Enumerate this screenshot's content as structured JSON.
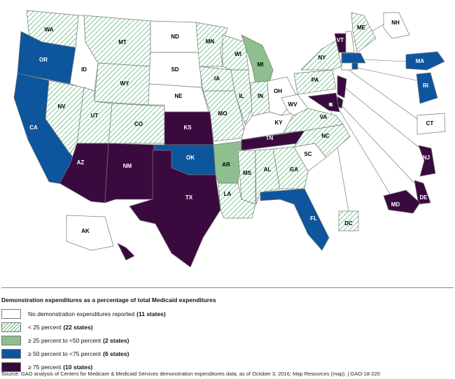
{
  "colors": {
    "none": "#ffffff",
    "lt25": "#5cb87a",
    "25to50": "#8fbf8f",
    "50to75": "#0d559c",
    "gte75": "#3a0a3e"
  },
  "states": {
    "WA": "lt25",
    "OR": "50to75",
    "CA": "50to75",
    "NV": "lt25",
    "ID": "none",
    "MT": "lt25",
    "WY": "lt25",
    "UT": "lt25",
    "CO": "lt25",
    "AZ": "gte75",
    "NM": "gte75",
    "ND": "none",
    "SD": "none",
    "NE": "none",
    "KS": "gte75",
    "OK": "50to75",
    "TX": "gte75",
    "MN": "lt25",
    "IA": "lt25",
    "MO": "lt25",
    "AR": "25to50",
    "LA": "lt25",
    "WI": "lt25",
    "IL": "lt25",
    "MI": "25to50",
    "IN": "lt25",
    "OH": "none",
    "KY": "none",
    "TN": "gte75",
    "MS": "lt25",
    "AL": "lt25",
    "GA": "lt25",
    "FL": "50to75",
    "SC": "none",
    "NC": "lt25",
    "VA": "lt25",
    "WV": "none",
    "PA": "lt25",
    "NY": "lt25",
    "VT": "gte75",
    "NH": "none",
    "ME": "lt25",
    "MA": "50to75",
    "CT": "none",
    "RI": "50to75",
    "NJ": "gte75",
    "DE": "gte75",
    "MD": "gte75",
    "DC": "lt25",
    "AK": "none",
    "HI": "gte75"
  },
  "legend": {
    "title": "Demonstration expenditures as a percentage of total Medicaid expenditures",
    "items": [
      {
        "key": "none",
        "label": "No demonstration expenditures reported",
        "count": "(11 states)"
      },
      {
        "key": "lt25",
        "label": "< 25 percent",
        "count": "(22 states)"
      },
      {
        "key": "25to50",
        "label": "≥ 25 percent to <50 percent",
        "count": "(2 states)"
      },
      {
        "key": "50to75",
        "label": "≥  50 percent to <75 percent",
        "count": "(6 states)"
      },
      {
        "key": "gte75",
        "label": "≥ 75 percent",
        "count": "(10 states)"
      }
    ]
  },
  "source": "Source: GAO analysis of Centers for Medicare & Medicaid Services demonstration expenditures data, as of October 3, 2016; Map Resources (map).  |  GAO-18-220"
}
